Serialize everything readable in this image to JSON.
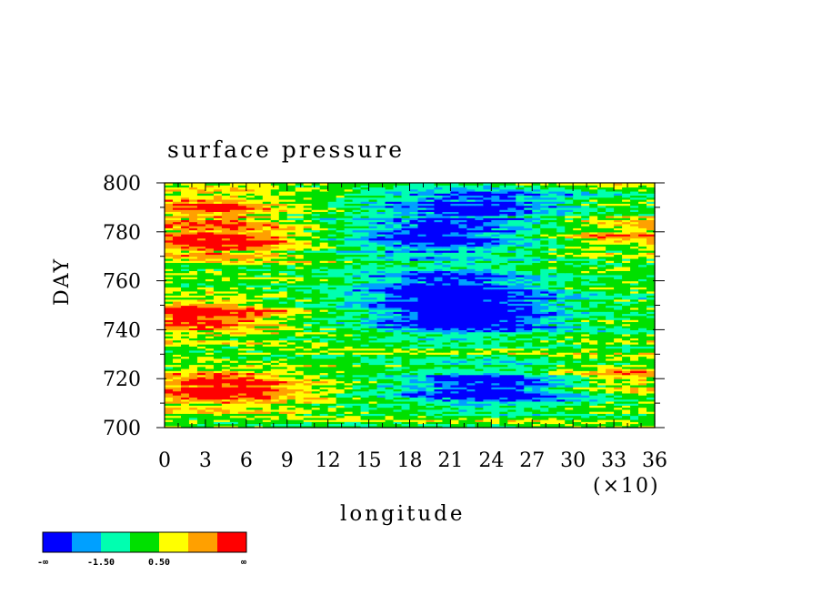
{
  "chart_data": {
    "type": "heatmap",
    "title": "surface pressure",
    "xlabel": "longitude",
    "ylabel": "DAY",
    "x_multiplier_label": "(×10)",
    "xlim": [
      0,
      36
    ],
    "ylim": [
      700,
      800
    ],
    "xticks": [
      "0",
      "3",
      "6",
      "9",
      "12",
      "15",
      "18",
      "21",
      "24",
      "27",
      "30",
      "33",
      "36"
    ],
    "yticks": [
      "700",
      "720",
      "740",
      "760",
      "780",
      "800"
    ],
    "colorbar": {
      "colors": [
        "#0000ff",
        "#00a0ff",
        "#00ffb0",
        "#00e000",
        "#ffff00",
        "#ffa000",
        "#ff0000"
      ],
      "labels": [
        "-∞",
        "-1.50",
        "0.50",
        "∞"
      ]
    },
    "field_pattern": {
      "low_regions": [
        {
          "lon": 24.0,
          "day": 716,
          "strength": 1.0
        },
        {
          "lon": 22.0,
          "day": 745,
          "strength": 1.0
        },
        {
          "lon": 21.0,
          "day": 758,
          "strength": 0.9
        },
        {
          "lon": 20.0,
          "day": 778,
          "strength": 0.9
        },
        {
          "lon": 23.0,
          "day": 792,
          "strength": 0.8
        }
      ],
      "high_regions": [
        {
          "lon": 4.5,
          "day": 716,
          "strength": 1.0
        },
        {
          "lon": 2.5,
          "day": 746,
          "strength": 1.0
        },
        {
          "lon": 4.0,
          "day": 776,
          "strength": 0.9
        },
        {
          "lon": 3.0,
          "day": 790,
          "strength": 0.7
        },
        {
          "lon": 34.0,
          "day": 720,
          "strength": 0.5
        },
        {
          "lon": 35.0,
          "day": 780,
          "strength": 0.5
        }
      ]
    }
  }
}
